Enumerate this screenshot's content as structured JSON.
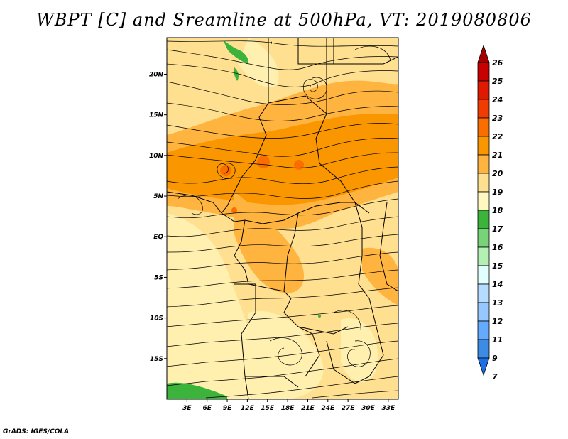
{
  "title": "WBPT [C] and Sreamline at 500hPa, VT: 2019080806",
  "footer": "GrADS: IGES/COLA",
  "map": {
    "lat_labels": [
      "20N",
      "15N",
      "10N",
      "5N",
      "EQ",
      "5S",
      "10S",
      "15S"
    ],
    "lat_values": [
      20,
      15,
      10,
      5,
      0,
      -5,
      -10,
      -15
    ],
    "lon_labels": [
      "3E",
      "6E",
      "9E",
      "12E",
      "15E",
      "18E",
      "21E",
      "24E",
      "27E",
      "30E",
      "33E"
    ],
    "lon_values": [
      3,
      6,
      9,
      12,
      15,
      18,
      21,
      24,
      27,
      30,
      33
    ],
    "lon_range": [
      0,
      34.5
    ],
    "lat_range": [
      -20,
      24.5
    ]
  },
  "colorbar": {
    "labels": [
      "26",
      "25",
      "24",
      "23",
      "22",
      "21",
      "20",
      "19",
      "18",
      "17",
      "16",
      "15",
      "14",
      "13",
      "12",
      "11",
      "9",
      "7"
    ],
    "colors": [
      "#a50000",
      "#c80000",
      "#e11900",
      "#f03c00",
      "#fa6e00",
      "#fa9600",
      "#ffb440",
      "#ffe090",
      "#fff8c0",
      "#3cb43c",
      "#78d278",
      "#b4f0b4",
      "#e1ffff",
      "#b4dcff",
      "#96c8ff",
      "#64aaff",
      "#3c8ce6",
      "#1e6ee6"
    ]
  }
}
